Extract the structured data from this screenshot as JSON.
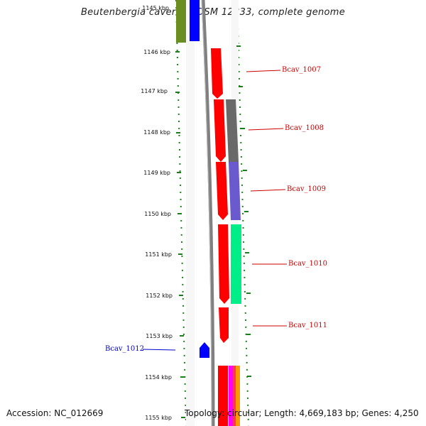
{
  "title": "Beutenbergia cavernae DSM 12333, complete genome",
  "accession": "Accession: NC_012669",
  "summary": "Topology: circular; Length: 4,669,183 bp; Genes: 4,250",
  "top_partial_label": "1145 kbp",
  "ticks": [
    "1146 kbp",
    "1147 kbp",
    "1148 kbp",
    "1149 kbp",
    "1150 kbp",
    "1151 kbp",
    "1152 kbp",
    "1153 kbp",
    "1154 kbp",
    "1155 kbp"
  ],
  "genes": [
    {
      "name": "Bcav_1007",
      "color": "#cc0000"
    },
    {
      "name": "Bcav_1008",
      "color": "#cc0000"
    },
    {
      "name": "Bcav_1009",
      "color": "#cc0000"
    },
    {
      "name": "Bcav_1010",
      "color": "#cc0000"
    },
    {
      "name": "Bcav_1011",
      "color": "#cc0000"
    },
    {
      "name": "Bcav_1012",
      "color": "#0000cc"
    }
  ],
  "colors": {
    "forward_strand": "#ff0000",
    "reverse_strand": "#0000ff",
    "tick": "#1a7f1a",
    "backbone": "#808080",
    "olive_track": "#6b8e23",
    "grey_track": "#696969",
    "slate_track": "#6a5acd",
    "green_track": "#00ee88",
    "magenta_track": "#ff00ff",
    "orange_track": "#ff9900"
  }
}
